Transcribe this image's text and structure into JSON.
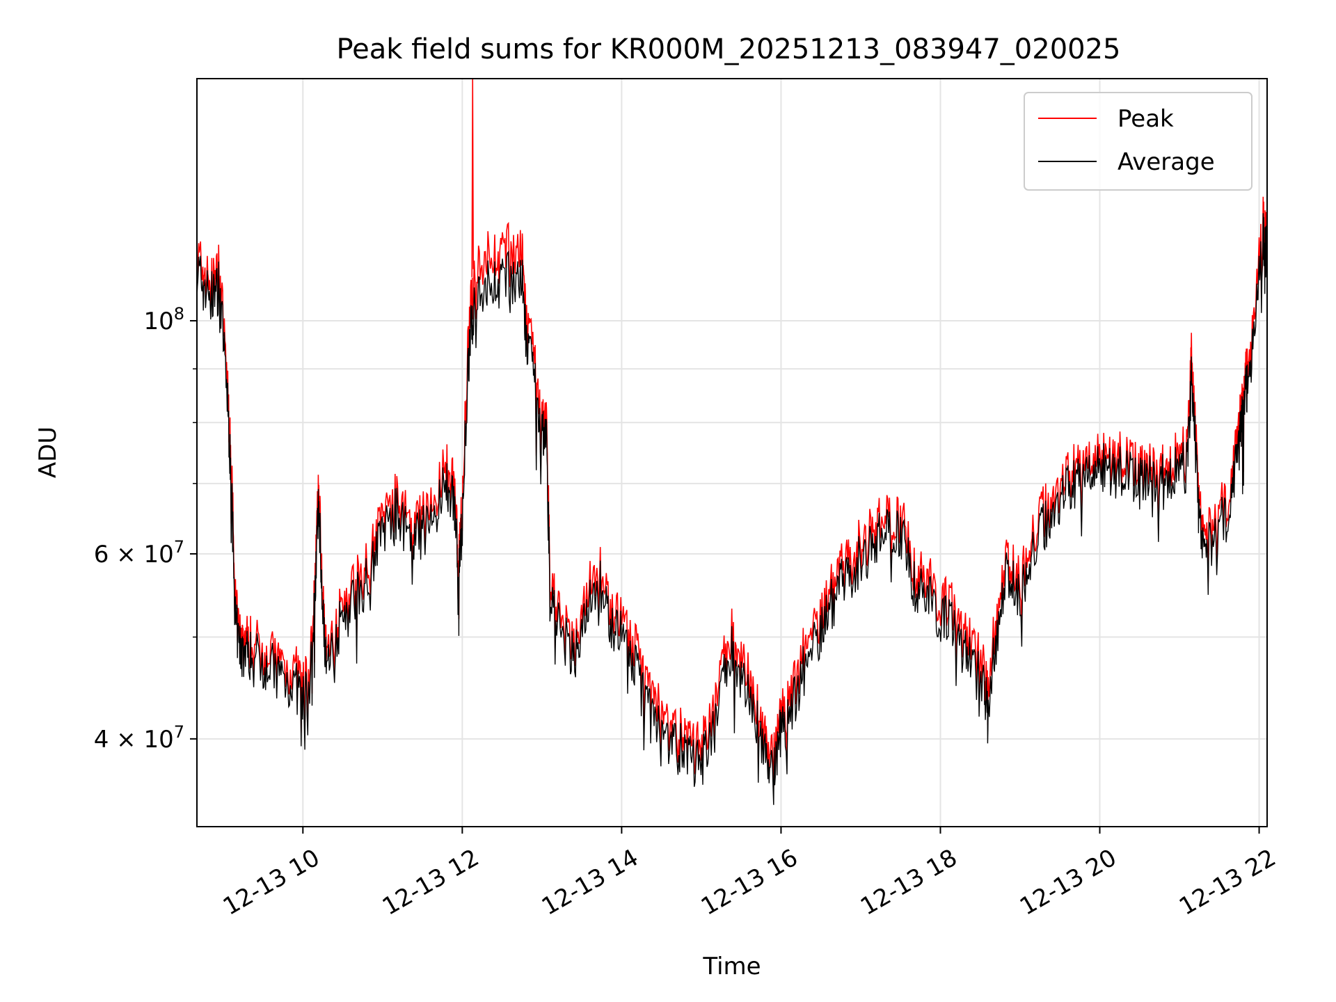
{
  "chart_data": {
    "type": "line",
    "title": "Peak field sums for KR000M_20251213_083947_020025",
    "xlabel": "Time",
    "ylabel": "ADU",
    "yscale": "log",
    "xlim_hours": [
      8.67,
      22.1
    ],
    "ylim": [
      33000000,
      170000000
    ],
    "x_ticks": [
      {
        "value": 10,
        "label": "12-13 10"
      },
      {
        "value": 12,
        "label": "12-13 12"
      },
      {
        "value": 14,
        "label": "12-13 14"
      },
      {
        "value": 16,
        "label": "12-13 16"
      },
      {
        "value": 18,
        "label": "12-13 18"
      },
      {
        "value": 20,
        "label": "12-13 20"
      },
      {
        "value": 22,
        "label": "12-13 22"
      }
    ],
    "y_ticks": [
      {
        "value": 40000000,
        "base": "4 × 10",
        "exp": "7"
      },
      {
        "value": 60000000,
        "base": "6 × 10",
        "exp": "7"
      },
      {
        "value": 100000000,
        "base": "10",
        "exp": "8"
      }
    ],
    "y_minor_ticks": [
      50000000,
      70000000,
      80000000,
      90000000
    ],
    "grid": true,
    "legend_position": "top-right",
    "series": [
      {
        "name": "Peak",
        "color": "#ff0000"
      },
      {
        "name": "Average",
        "color": "#000000"
      }
    ],
    "x_hours": [
      8.67,
      8.75,
      8.85,
      8.95,
      9.05,
      9.1,
      9.15,
      9.2,
      9.25,
      9.35,
      9.5,
      9.65,
      9.8,
      9.95,
      10.08,
      10.15,
      10.2,
      10.25,
      10.3,
      10.45,
      10.6,
      10.75,
      10.9,
      11.05,
      11.2,
      11.35,
      11.5,
      11.65,
      11.8,
      11.9,
      11.95,
      12.0,
      12.08,
      12.15,
      12.3,
      12.45,
      12.6,
      12.75,
      12.8,
      12.9,
      13.0,
      13.05,
      13.1,
      13.25,
      13.4,
      13.55,
      13.7,
      13.85,
      14.0,
      14.15,
      14.3,
      14.45,
      14.6,
      14.75,
      14.9,
      15.05,
      15.2,
      15.35,
      15.5,
      15.65,
      15.8,
      15.9,
      16.0,
      16.15,
      16.3,
      16.45,
      16.6,
      16.75,
      16.9,
      17.05,
      17.2,
      17.35,
      17.5,
      17.65,
      17.8,
      17.95,
      18.1,
      18.25,
      18.4,
      18.55,
      18.6,
      18.7,
      18.85,
      19.0,
      19.15,
      19.3,
      19.45,
      19.6,
      19.75,
      19.9,
      20.05,
      20.2,
      20.35,
      20.5,
      20.65,
      20.8,
      20.95,
      21.1,
      21.15,
      21.2,
      21.25,
      21.35,
      21.5,
      21.65,
      21.75,
      21.8,
      21.85,
      21.95,
      22.05,
      22.1
    ],
    "average": [
      112000000,
      108000000,
      105000000,
      108000000,
      85000000,
      70000000,
      52000000,
      49000000,
      48500000,
      48000000,
      47500000,
      46500000,
      45500000,
      44500000,
      43500000,
      55000000,
      67000000,
      52000000,
      48000000,
      51000000,
      54000000,
      56000000,
      60000000,
      64000000,
      66000000,
      61000000,
      63000000,
      65000000,
      70000000,
      67000000,
      58000000,
      64000000,
      92000000,
      106000000,
      108000000,
      109000000,
      110000000,
      109000000,
      96000000,
      88000000,
      77000000,
      80000000,
      55000000,
      50000000,
      48000000,
      52000000,
      57000000,
      52000000,
      50000000,
      47000000,
      44000000,
      42000000,
      40000000,
      39000000,
      38000000,
      38500000,
      42000000,
      49000000,
      46000000,
      43000000,
      39000000,
      36500000,
      41000000,
      43000000,
      47000000,
      50000000,
      53000000,
      56000000,
      58000000,
      60000000,
      62000000,
      64000000,
      63000000,
      57000000,
      55000000,
      53000000,
      52000000,
      50000000,
      47000000,
      45000000,
      42000000,
      50000000,
      58000000,
      55000000,
      60000000,
      64000000,
      66000000,
      69000000,
      70000000,
      72000000,
      73000000,
      72000000,
      71000000,
      70000000,
      71000000,
      72000000,
      72000000,
      73000000,
      88000000,
      76000000,
      64000000,
      60000000,
      65000000,
      66000000,
      78000000,
      82000000,
      87000000,
      98000000,
      120000000,
      115000000
    ],
    "peak": [
      115000000,
      110000000,
      107000000,
      111000000,
      87000000,
      72000000,
      53500000,
      50000000,
      49500000,
      49000000,
      48500000,
      47500000,
      46500000,
      45500000,
      44500000,
      56500000,
      69000000,
      53000000,
      49000000,
      52000000,
      55000000,
      57500000,
      61500000,
      65500000,
      67500000,
      62500000,
      64500000,
      66500000,
      72000000,
      69000000,
      59500000,
      65500000,
      96000000,
      112000000,
      114000000,
      115000000,
      116000000,
      115000000,
      99000000,
      91000000,
      79000000,
      82000000,
      56500000,
      51000000,
      49000000,
      53500000,
      58500000,
      53500000,
      51500000,
      48500000,
      45500000,
      43500000,
      41000000,
      40000000,
      39000000,
      39500000,
      43500000,
      50500000,
      47500000,
      44500000,
      40000000,
      37500000,
      42000000,
      44500000,
      48500000,
      51500000,
      54500000,
      57500000,
      59500000,
      61500000,
      63500000,
      65500000,
      64500000,
      58500000,
      56500000,
      54500000,
      53500000,
      51500000,
      48500000,
      46500000,
      43500000,
      51500000,
      59500000,
      56500000,
      61500000,
      65500000,
      67500000,
      70500000,
      71500000,
      73500000,
      74500000,
      73500000,
      72500000,
      71500000,
      72500000,
      73500000,
      73500000,
      74500000,
      92000000,
      78000000,
      65500000,
      61500000,
      66500000,
      67500000,
      80000000,
      84000000,
      89000000,
      101000000,
      123000000,
      118000000
    ],
    "peak_spike": {
      "x_hour": 12.13,
      "value": 170000000
    }
  }
}
